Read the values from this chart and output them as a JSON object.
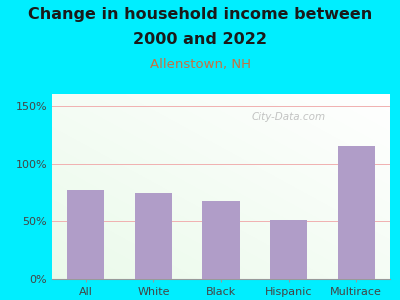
{
  "categories": [
    "All",
    "White",
    "Black",
    "Hispanic",
    "Multirace"
  ],
  "values": [
    77,
    75,
    68,
    51,
    115
  ],
  "bar_color": "#b09dc8",
  "title_line1": "Change in household income between",
  "title_line2": "2000 and 2022",
  "subtitle": "Allenstown, NH",
  "subtitle_color": "#c87040",
  "title_color": "#1a1a1a",
  "bg_color": "#00eeff",
  "ylim": [
    0,
    160
  ],
  "yticks": [
    0,
    50,
    100,
    150
  ],
  "ytick_labels": [
    "0%",
    "50%",
    "100%",
    "150%"
  ],
  "grid_color": "#f0b0b0",
  "watermark": "City-Data.com",
  "title_fontsize": 11.5,
  "subtitle_fontsize": 9.5,
  "tick_fontsize": 8
}
